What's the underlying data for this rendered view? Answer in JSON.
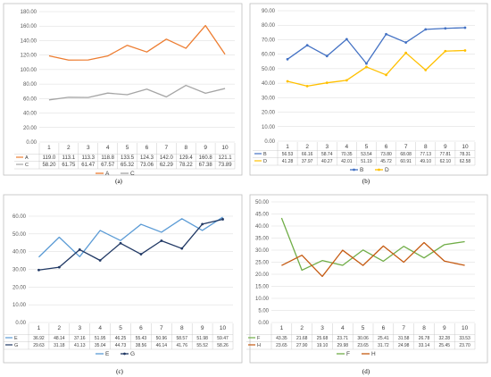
{
  "chart_data": [
    {
      "type": "line",
      "caption": "(a)",
      "categories": [
        "1",
        "2",
        "3",
        "4",
        "5",
        "6",
        "7",
        "8",
        "9",
        "10"
      ],
      "yticks": [
        "0.00",
        "20.00",
        "40.00",
        "60.00",
        "80.00",
        "100.00",
        "120.00",
        "140.00",
        "160.00",
        "180.00"
      ],
      "ylim": [
        0,
        180
      ],
      "series": [
        {
          "name": "A",
          "color": "#ed7d31",
          "values": [
            119.0,
            113.1,
            113.3,
            118.8,
            133.5,
            124.3,
            142.0,
            129.4,
            160.8,
            121.1
          ],
          "labels": [
            "119.0",
            "113.1",
            "113.3",
            "118.8",
            "133.5",
            "124.3",
            "142.0",
            "129.4",
            "160.8",
            "121.1"
          ]
        },
        {
          "name": "C",
          "color": "#a5a5a5",
          "values": [
            58.2,
            61.75,
            61.47,
            67.57,
            65.32,
            73.06,
            62.29,
            78.22,
            67.38,
            73.89
          ],
          "labels": [
            "58.20",
            "61.75",
            "61.47",
            "67.57",
            "65.32",
            "73.06",
            "62.29",
            "78.22",
            "67.38",
            "73.89"
          ]
        }
      ]
    },
    {
      "type": "line",
      "caption": "(b)",
      "categories": [
        "1",
        "2",
        "3",
        "4",
        "5",
        "6",
        "7",
        "8",
        "9",
        "10"
      ],
      "yticks": [
        "0.00",
        "10.00",
        "20.00",
        "30.00",
        "40.00",
        "50.00",
        "60.00",
        "70.00",
        "80.00",
        "90.00"
      ],
      "ylim": [
        0,
        90
      ],
      "series": [
        {
          "name": "B",
          "color": "#4472c4",
          "values": [
            56.53,
            66.16,
            58.74,
            70.35,
            53.54,
            73.8,
            68.08,
            77.13,
            77.81,
            78.31
          ],
          "labels": [
            "56.53",
            "66.16",
            "58.74",
            "70.35",
            "53.54",
            "73.80",
            "68.08",
            "77.13",
            "77.81",
            "78.31"
          ]
        },
        {
          "name": "D",
          "color": "#ffc000",
          "values": [
            41.28,
            37.97,
            40.27,
            42.01,
            51.19,
            45.72,
            60.91,
            49.1,
            62.1,
            62.58
          ],
          "labels": [
            "41.28",
            "37.97",
            "40.27",
            "42.01",
            "51.19",
            "45.72",
            "60.91",
            "49.10",
            "62.10",
            "62.58"
          ]
        }
      ]
    },
    {
      "type": "line",
      "caption": "(c)",
      "categories": [
        "1",
        "2",
        "3",
        "4",
        "5",
        "6",
        "7",
        "8",
        "9",
        "10"
      ],
      "yticks": [
        "0.00",
        "10.00",
        "20.00",
        "30.00",
        "40.00",
        "50.00",
        "60.00"
      ],
      "ylim": [
        0,
        60
      ],
      "series": [
        {
          "name": "E",
          "color": "#5b9bd5",
          "values": [
            36.92,
            48.14,
            37.16,
            51.95,
            46.25,
            55.43,
            50.96,
            58.57,
            51.98,
            59.47
          ],
          "labels": [
            "36.92",
            "48.14",
            "37.16",
            "51.95",
            "46.25",
            "55.43",
            "50.96",
            "58.57",
            "51.98",
            "59.47"
          ]
        },
        {
          "name": "G",
          "color": "#203864",
          "values": [
            29.63,
            31.18,
            41.13,
            35.04,
            44.73,
            38.56,
            46.14,
            41.76,
            55.52,
            58.26
          ],
          "labels": [
            "29.63",
            "31.18",
            "41.13",
            "35.04",
            "44.73",
            "38.56",
            "46.14",
            "41.76",
            "55.52",
            "58.26"
          ]
        }
      ]
    },
    {
      "type": "line",
      "caption": "(d)",
      "categories": [
        "1",
        "2",
        "3",
        "4",
        "5",
        "6",
        "7",
        "8",
        "9",
        "10"
      ],
      "yticks": [
        "0.00",
        "5.00",
        "10.00",
        "15.00",
        "20.00",
        "25.00",
        "30.00",
        "35.00",
        "40.00",
        "45.00",
        "50.00"
      ],
      "ylim": [
        0,
        50
      ],
      "series": [
        {
          "name": "F",
          "color": "#70ad47",
          "values": [
            43.35,
            21.68,
            25.68,
            23.71,
            30.06,
            25.41,
            31.58,
            26.78,
            32.28,
            33.53
          ],
          "labels": [
            "43.35",
            "21.68",
            "25.68",
            "23.71",
            "30.06",
            "25.41",
            "31.58",
            "26.78",
            "32.28",
            "33.53"
          ]
        },
        {
          "name": "H",
          "color": "#c55a11",
          "values": [
            23.65,
            27.9,
            19.1,
            29.98,
            23.65,
            31.72,
            24.98,
            33.14,
            25.45,
            23.7
          ],
          "labels": [
            "23.65",
            "27.90",
            "19.10",
            "29.98",
            "23.65",
            "31.72",
            "24.98",
            "33.14",
            "25.45",
            "23.70"
          ]
        }
      ]
    }
  ]
}
